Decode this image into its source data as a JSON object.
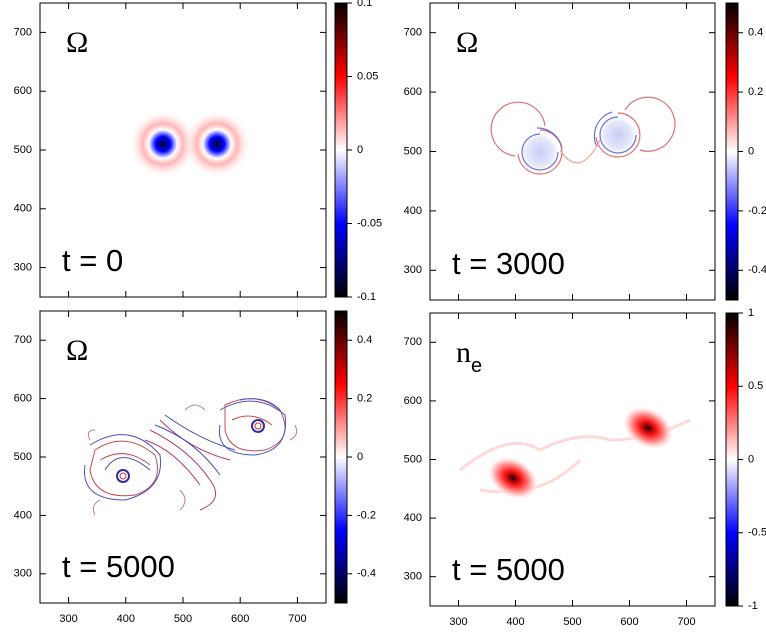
{
  "chart_data": [
    {
      "type": "heatmap",
      "title": "Ω",
      "annotation": "t = 0",
      "xlim": [
        250,
        750
      ],
      "ylim": [
        250,
        750
      ],
      "xticks": [
        300,
        400,
        500,
        600,
        700
      ],
      "yticks": [
        300,
        400,
        500,
        600,
        700
      ],
      "xticklabels": false,
      "clim": [
        -0.1,
        0.1
      ],
      "cticks": [
        -0.1,
        -0.05,
        0,
        0.05,
        0.1
      ],
      "colormap": [
        "#000000",
        "#0000ff",
        "#ffffff",
        "#ff0000",
        "#000000"
      ]
    },
    {
      "type": "heatmap",
      "title": "Ω",
      "annotation": "t = 3000",
      "xlim": [
        250,
        750
      ],
      "ylim": [
        250,
        750
      ],
      "xticks": [
        300,
        400,
        500,
        600,
        700
      ],
      "yticks": [
        300,
        400,
        500,
        600,
        700
      ],
      "xticklabels": false,
      "clim": [
        -0.5,
        0.5
      ],
      "cticks": [
        -0.4,
        -0.2,
        0,
        0.2,
        0.4
      ],
      "colormap": [
        "#000000",
        "#0000ff",
        "#ffffff",
        "#ff0000",
        "#000000"
      ]
    },
    {
      "type": "heatmap",
      "title": "Ω",
      "annotation": "t = 5000",
      "xlim": [
        250,
        750
      ],
      "ylim": [
        250,
        750
      ],
      "xticks": [
        300,
        400,
        500,
        600,
        700
      ],
      "yticks": [
        300,
        400,
        500,
        600,
        700
      ],
      "xticklabels": true,
      "clim": [
        -0.5,
        0.5
      ],
      "cticks": [
        -0.4,
        -0.2,
        0,
        0.2,
        0.4
      ],
      "colormap": [
        "#000000",
        "#0000ff",
        "#ffffff",
        "#ff0000",
        "#000000"
      ]
    },
    {
      "type": "heatmap",
      "title": "n",
      "title_subscript": "e",
      "annotation": "t = 5000",
      "xlim": [
        250,
        750
      ],
      "ylim": [
        250,
        750
      ],
      "xticks": [
        300,
        400,
        500,
        600,
        700
      ],
      "yticks": [
        300,
        400,
        500,
        600,
        700
      ],
      "xticklabels": true,
      "clim": [
        -1,
        1
      ],
      "cticks": [
        -1,
        -0.5,
        0,
        0.5,
        1
      ],
      "colormap": [
        "#000000",
        "#0000ff",
        "#ffffff",
        "#ff0000",
        "#000000"
      ]
    }
  ]
}
